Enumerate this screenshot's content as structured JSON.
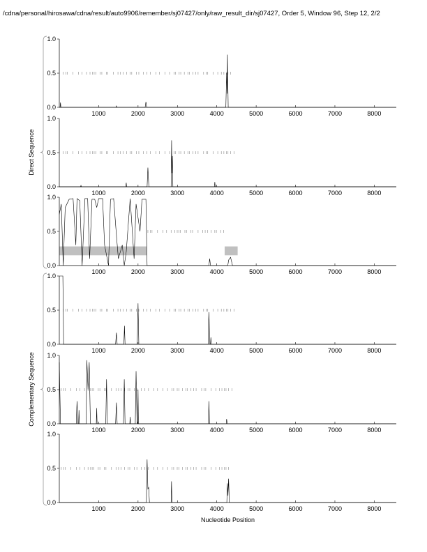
{
  "title": "/cdna/personal/hirosawa/cdna/result/auto9906/remember/sj07427/only/raw_result_dir/sj07427, Order 5, Window 96, Step 12, 2/2",
  "chart_data": {
    "type": "line",
    "xlabel": "Nucleotide Position",
    "group_labels": [
      "Direct Sequence",
      "Complementary Sequence"
    ],
    "xlim": [
      0,
      8560
    ],
    "ylim": [
      0,
      1
    ],
    "xticks": [
      1000,
      2000,
      3000,
      4000,
      5000,
      6000,
      7000,
      8000
    ],
    "xtick_labels": [
      "1000",
      "2000",
      "3000",
      "4000",
      "5000",
      "6000",
      "7000",
      "8000"
    ],
    "yticks": [
      0,
      0.5,
      1
    ],
    "ytick_labels": [
      "0.0",
      "0.5",
      "1.0"
    ],
    "line_color": "#000000",
    "box_color": "#c0c0c0",
    "panels": [
      {
        "group": "Direct Sequence",
        "marker_range": [
          100,
          4400
        ],
        "points": [
          [
            0,
            0
          ],
          [
            20,
            0
          ],
          [
            30,
            0.07
          ],
          [
            40,
            0
          ],
          [
            1440,
            0
          ],
          [
            1450,
            0.02
          ],
          [
            1460,
            0
          ],
          [
            2180,
            0
          ],
          [
            2200,
            0.08
          ],
          [
            2220,
            0
          ],
          [
            4230,
            0
          ],
          [
            4250,
            0.5
          ],
          [
            4262,
            0.2
          ],
          [
            4272,
            0.77
          ],
          [
            4290,
            0
          ],
          [
            8560,
            0
          ]
        ],
        "boxes": []
      },
      {
        "group": "Direct Sequence",
        "marker_range": [
          100,
          4450
        ],
        "points": [
          [
            0,
            0
          ],
          [
            540,
            0
          ],
          [
            550,
            0.02
          ],
          [
            560,
            0
          ],
          [
            1690,
            0
          ],
          [
            1700,
            0.06
          ],
          [
            1710,
            0
          ],
          [
            2230,
            0
          ],
          [
            2250,
            0.28
          ],
          [
            2275,
            0
          ],
          [
            2840,
            0
          ],
          [
            2852,
            0.68
          ],
          [
            2862,
            0.2
          ],
          [
            2872,
            0.45
          ],
          [
            2885,
            0
          ],
          [
            3940,
            0
          ],
          [
            3950,
            0.07
          ],
          [
            3960,
            0
          ],
          [
            8560,
            0
          ]
        ],
        "boxes": []
      },
      {
        "group": "Direct Sequence",
        "marker_range": [
          2250,
          4250
        ],
        "points": [
          [
            0,
            0.75
          ],
          [
            50,
            0.9
          ],
          [
            100,
            0.0
          ],
          [
            150,
            0.85
          ],
          [
            250,
            0.97
          ],
          [
            350,
            0.98
          ],
          [
            420,
            0.3
          ],
          [
            450,
            0.98
          ],
          [
            520,
            0.95
          ],
          [
            580,
            0.0
          ],
          [
            650,
            0.98
          ],
          [
            720,
            0.98
          ],
          [
            770,
            0.1
          ],
          [
            830,
            0.97
          ],
          [
            900,
            0.97
          ],
          [
            950,
            0.85
          ],
          [
            1000,
            0.98
          ],
          [
            1100,
            0.98
          ],
          [
            1150,
            0.3
          ],
          [
            1250,
            0.0
          ],
          [
            1300,
            0.97
          ],
          [
            1380,
            0.98
          ],
          [
            1450,
            0.45
          ],
          [
            1500,
            0.1
          ],
          [
            1600,
            0.3
          ],
          [
            1650,
            0.0
          ],
          [
            1700,
            0.2
          ],
          [
            1800,
            0.98
          ],
          [
            1900,
            0.1
          ],
          [
            1950,
            0.9
          ],
          [
            2050,
            0.5
          ],
          [
            2100,
            0.97
          ],
          [
            2200,
            0.97
          ],
          [
            2230,
            0.0
          ],
          [
            3800,
            0.0
          ],
          [
            3820,
            0.1
          ],
          [
            3840,
            0
          ],
          [
            4280,
            0
          ],
          [
            4300,
            0.08
          ],
          [
            4350,
            0.12
          ],
          [
            4400,
            0
          ],
          [
            8560,
            0
          ]
        ],
        "boxes": [
          [
            0,
            2220,
            0.15,
            0.28
          ],
          [
            4200,
            4530,
            0.15,
            0.28
          ]
        ]
      },
      {
        "group": "Complementary Sequence",
        "marker_range": [
          100,
          4500
        ],
        "points": [
          [
            0,
            1.0
          ],
          [
            90,
            1.0
          ],
          [
            110,
            0
          ],
          [
            1430,
            0
          ],
          [
            1450,
            0.17
          ],
          [
            1470,
            0
          ],
          [
            1640,
            0
          ],
          [
            1655,
            0.27
          ],
          [
            1670,
            0
          ],
          [
            1980,
            0
          ],
          [
            2000,
            0.6
          ],
          [
            2020,
            0
          ],
          [
            3780,
            0
          ],
          [
            3800,
            0.47
          ],
          [
            3825,
            0
          ],
          [
            3840,
            0
          ],
          [
            3850,
            0.1
          ],
          [
            3860,
            0
          ],
          [
            8560,
            0
          ]
        ],
        "boxes": []
      },
      {
        "group": "Complementary Sequence",
        "marker_range": [
          50,
          4450
        ],
        "points": [
          [
            0,
            0.9
          ],
          [
            30,
            0
          ],
          [
            430,
            0
          ],
          [
            450,
            0.33
          ],
          [
            470,
            0
          ],
          [
            490,
            0
          ],
          [
            500,
            0.2
          ],
          [
            510,
            0
          ],
          [
            680,
            0
          ],
          [
            700,
            0.93
          ],
          [
            730,
            0.5
          ],
          [
            760,
            0.9
          ],
          [
            790,
            0
          ],
          [
            940,
            0
          ],
          [
            950,
            0.23
          ],
          [
            960,
            0
          ],
          [
            1180,
            0
          ],
          [
            1200,
            0.65
          ],
          [
            1220,
            0
          ],
          [
            1430,
            0
          ],
          [
            1450,
            0.31
          ],
          [
            1470,
            0
          ],
          [
            1630,
            0
          ],
          [
            1650,
            0.65
          ],
          [
            1670,
            0
          ],
          [
            1790,
            0
          ],
          [
            1800,
            0.1
          ],
          [
            1810,
            0
          ],
          [
            1930,
            0
          ],
          [
            1950,
            0.77
          ],
          [
            1975,
            0
          ],
          [
            1990,
            0
          ],
          [
            2000,
            0.5
          ],
          [
            2010,
            0
          ],
          [
            3790,
            0
          ],
          [
            3800,
            0.33
          ],
          [
            3815,
            0
          ],
          [
            4240,
            0
          ],
          [
            4250,
            0.07
          ],
          [
            4265,
            0
          ],
          [
            8560,
            0
          ]
        ],
        "boxes": []
      },
      {
        "group": "Complementary Sequence",
        "marker_range": [
          50,
          4350
        ],
        "points": [
          [
            0,
            0
          ],
          [
            2210,
            0
          ],
          [
            2230,
            0.63
          ],
          [
            2250,
            0.2
          ],
          [
            2270,
            0.22
          ],
          [
            2290,
            0
          ],
          [
            2840,
            0
          ],
          [
            2850,
            0.31
          ],
          [
            2862,
            0
          ],
          [
            4255,
            0
          ],
          [
            4270,
            0.28
          ],
          [
            4285,
            0.1
          ],
          [
            4300,
            0.35
          ],
          [
            4320,
            0
          ],
          [
            8560,
            0
          ]
        ],
        "boxes": []
      }
    ]
  }
}
